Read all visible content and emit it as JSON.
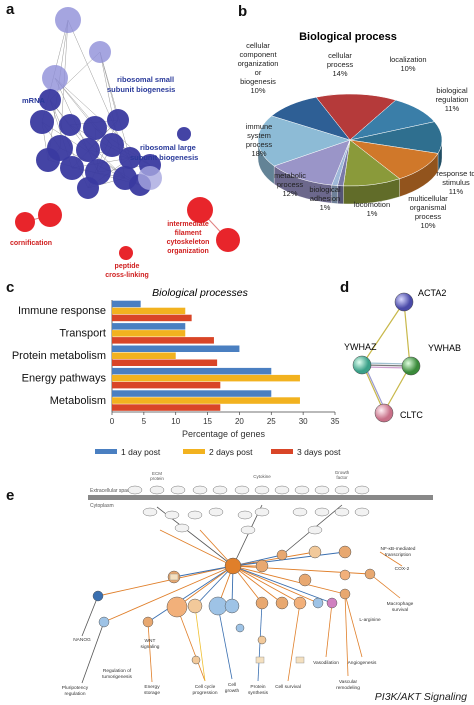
{
  "panels": {
    "a": {
      "letter": "a",
      "labels": {
        "ribosomal_small": [
          "ribosomal small",
          "subunit biogenesis"
        ],
        "ribosomal_large": [
          "ribosomal large",
          "subunit biogenesis"
        ],
        "mrna": "mRNA",
        "cornification": "cornification",
        "peptide": [
          "peptide",
          "cross-linking"
        ],
        "ifco": [
          "intermediate",
          "filament",
          "cytoskeleton",
          "organization"
        ]
      }
    },
    "b": {
      "letter": "b",
      "chart_data": {
        "type": "pie",
        "title": "Biological process",
        "slices": [
          {
            "label": [
              "cellular",
              "process",
              "14%"
            ],
            "value": 14,
            "color": "#b53a3a"
          },
          {
            "label": [
              "localization",
              "10%"
            ],
            "value": 10,
            "color": "#3a7ea8"
          },
          {
            "label": [
              "biological",
              "regulation",
              "11%"
            ],
            "value": 11,
            "color": "#2f6f8f"
          },
          {
            "label": [
              "response to",
              "stimulus",
              "11%"
            ],
            "value": 11,
            "color": "#d0782a"
          },
          {
            "label": [
              "multicellular",
              "organismal",
              "process",
              "10%"
            ],
            "value": 10,
            "color": "#8a9a3a"
          },
          {
            "label": [
              "locomotion",
              "1%"
            ],
            "value": 1,
            "color": "#7a7aa8"
          },
          {
            "label": [
              "biological",
              "adhesion",
              "1%"
            ],
            "value": 1,
            "color": "#9fb8d9"
          },
          {
            "label": [
              "metabolic",
              "process",
              "12%"
            ],
            "value": 12,
            "color": "#9a95c8"
          },
          {
            "label": [
              "immune",
              "system",
              "process",
              "18%"
            ],
            "value": 18,
            "color": "#8dbbd6"
          },
          {
            "label": [
              "cellular",
              "component",
              "organization",
              "or",
              "biogenesis",
              "10%"
            ],
            "value": 10,
            "color": "#2e5f95"
          }
        ]
      }
    },
    "c": {
      "letter": "c",
      "chart_data": {
        "type": "bar",
        "orientation": "horizontal",
        "title": "Biological processes",
        "xlabel": "Percentage of genes",
        "xlim": [
          0,
          35
        ],
        "ticks": [
          "0",
          "5",
          "10",
          "15",
          "20",
          "25",
          "30",
          "35"
        ],
        "categories": [
          "Immune response",
          "Transport",
          "Protein metabolism",
          "Energy pathways",
          "Metabolism"
        ],
        "series": [
          {
            "name": "1 day post",
            "color": "#4a7fc1",
            "values": [
              4.5,
              11.5,
              20,
              25,
              25
            ]
          },
          {
            "name": "2 days post",
            "color": "#f2b21f",
            "values": [
              11.5,
              11.5,
              10,
              29.5,
              29.5
            ]
          },
          {
            "name": "3 days post",
            "color": "#d94527",
            "values": [
              12.5,
              16,
              16.5,
              17,
              17
            ]
          }
        ],
        "legend_position": "bottom"
      }
    },
    "d": {
      "letter": "d",
      "nodes": [
        {
          "label": "ACTA2",
          "color": "#5a5ab8"
        },
        {
          "label": "YWHAZ",
          "color": "#5ab8a0"
        },
        {
          "label": "YWHAB",
          "color": "#5aa05a"
        },
        {
          "label": "CLTC",
          "color": "#d98aa0"
        }
      ]
    },
    "e": {
      "letter": "e",
      "caption": "PI3K/AKT Signaling",
      "labels": {
        "extracellular": "Extracellular space",
        "cytoplasm": "Cytoplasm",
        "ecm": [
          "ECM",
          "protein"
        ],
        "cytokine": "Cytokine",
        "growth": [
          "Growth",
          "factor"
        ],
        "nanog": "NANOG",
        "reg_tumor": [
          "Regulation of",
          "tumorigenesis"
        ],
        "wnt": [
          "WNT",
          "signaling"
        ],
        "energy": [
          "Energy",
          "storage"
        ],
        "cell_cycle": [
          "Cell cycle",
          "progression"
        ],
        "cell_growth": [
          "Cell",
          "growth"
        ],
        "protein_synth": [
          "Protein",
          "synthesis"
        ],
        "cell_survival": [
          "Cell survival"
        ],
        "vasodilation": "Vasodilation",
        "angiogenesis": "Angiogenesis",
        "vascular": [
          "Vascular",
          "remodeling"
        ],
        "macrophage": [
          "Macrophage",
          "survival"
        ],
        "larginine": "L-arginine",
        "pluripotency": [
          "Pluripotency",
          "regulation"
        ],
        "nfkb_tx": [
          "NF-κB-mediated",
          "transcription"
        ],
        "cox2": "COX-2"
      }
    }
  }
}
